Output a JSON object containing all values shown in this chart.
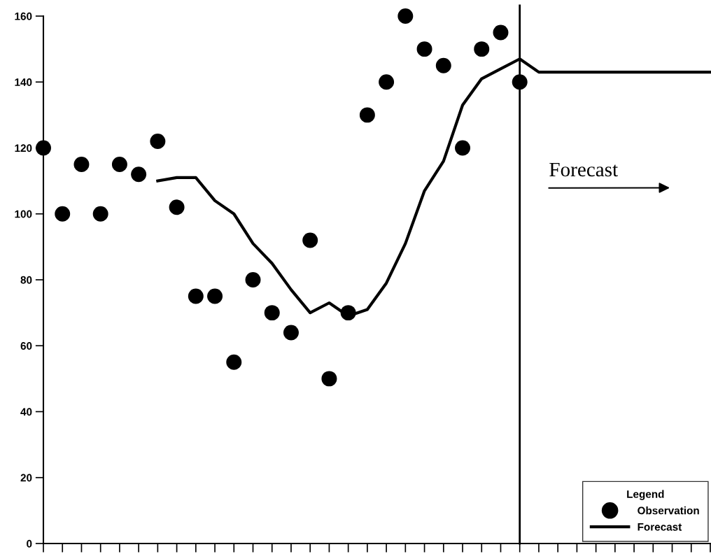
{
  "chart_data": {
    "type": "scatter",
    "categories": [
      null,
      null,
      null,
      null,
      null,
      null,
      null,
      null,
      null,
      null,
      null,
      null,
      null,
      null,
      null,
      null,
      null,
      null,
      null,
      null,
      null,
      null,
      null,
      null,
      null,
      null,
      null,
      null,
      null,
      null,
      null,
      null,
      null,
      null,
      null,
      null
    ],
    "series": [
      {
        "name": "Observation",
        "color": "#000000",
        "marker": "circle",
        "values": [
          120,
          100,
          115,
          100,
          115,
          112,
          122,
          102,
          75,
          75,
          55,
          80,
          70,
          64,
          92,
          50,
          70,
          130,
          140,
          160,
          150,
          145,
          120,
          150,
          155,
          140,
          null,
          null,
          null,
          null,
          null,
          null,
          null,
          null,
          null,
          null
        ]
      },
      {
        "name": "Forecast",
        "type": "line",
        "color": "#000000",
        "marker": "none",
        "line_style": "solid",
        "values": [
          null,
          null,
          null,
          null,
          null,
          null,
          110,
          111,
          111,
          104,
          100,
          91,
          85,
          77,
          70,
          73,
          69,
          71,
          79,
          91,
          107,
          116,
          133,
          141,
          144,
          147,
          143,
          143,
          143,
          143,
          143,
          143,
          143,
          143,
          143,
          143
        ]
      }
    ],
    "ylim": [
      0,
      160
    ],
    "yticks": [
      0,
      20,
      40,
      60,
      80,
      100,
      120,
      140,
      160
    ],
    "tick_labels": "y",
    "annotations": [
      "Forecast"
    ],
    "legend": "bottom right",
    "legend_title": "Legend",
    "grid": false
  }
}
